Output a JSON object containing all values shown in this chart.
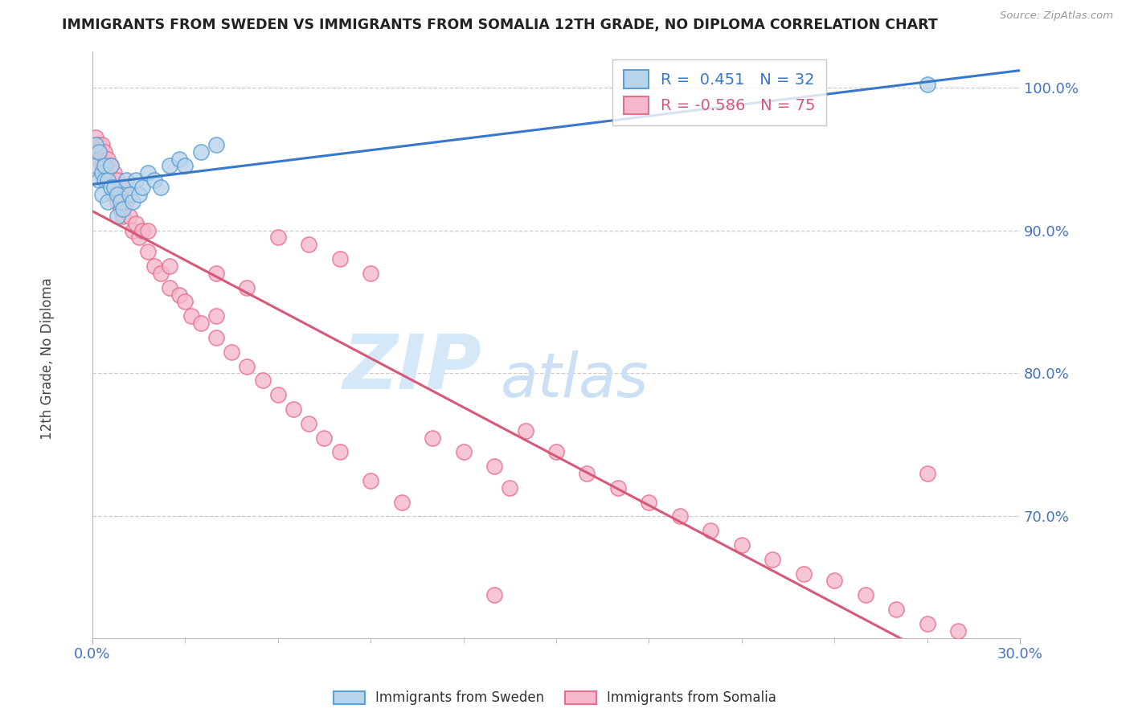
{
  "title": "IMMIGRANTS FROM SWEDEN VS IMMIGRANTS FROM SOMALIA 12TH GRADE, NO DIPLOMA CORRELATION CHART",
  "source_text": "Source: ZipAtlas.com",
  "ylabel": "12th Grade, No Diploma",
  "xlim": [
    0.0,
    0.3
  ],
  "ylim": [
    0.615,
    1.025
  ],
  "ytick_values": [
    0.7,
    0.8,
    0.9,
    1.0
  ],
  "sweden_fill_color": "#b8d4ea",
  "sweden_edge_color": "#5b9fd4",
  "somalia_fill_color": "#f5b8cc",
  "somalia_edge_color": "#e8708a",
  "trend_sweden_color": "#3878c8",
  "trend_somalia_color": "#d85878",
  "sweden_R": 0.451,
  "sweden_N": 32,
  "somalia_R": -0.586,
  "somalia_N": 75,
  "background_color": "#ffffff",
  "grid_color": "#cccccc",
  "axis_label_color": "#4472c4",
  "ylabel_color": "#444444",
  "title_color": "#222222",
  "sweden_x": [
    0.001,
    0.001,
    0.002,
    0.002,
    0.003,
    0.003,
    0.004,
    0.004,
    0.005,
    0.005,
    0.006,
    0.006,
    0.007,
    0.008,
    0.008,
    0.009,
    0.01,
    0.011,
    0.012,
    0.013,
    0.014,
    0.015,
    0.016,
    0.018,
    0.02,
    0.022,
    0.025,
    0.028,
    0.03,
    0.035,
    0.04,
    0.27
  ],
  "sweden_y": [
    0.945,
    0.96,
    0.935,
    0.955,
    0.925,
    0.94,
    0.935,
    0.945,
    0.92,
    0.935,
    0.93,
    0.945,
    0.93,
    0.91,
    0.925,
    0.92,
    0.915,
    0.935,
    0.925,
    0.92,
    0.935,
    0.925,
    0.93,
    0.94,
    0.935,
    0.93,
    0.945,
    0.95,
    0.945,
    0.955,
    0.96,
    1.002
  ],
  "somalia_x": [
    0.001,
    0.001,
    0.002,
    0.002,
    0.003,
    0.003,
    0.004,
    0.004,
    0.005,
    0.005,
    0.006,
    0.006,
    0.007,
    0.007,
    0.008,
    0.008,
    0.009,
    0.009,
    0.01,
    0.01,
    0.011,
    0.012,
    0.013,
    0.014,
    0.015,
    0.016,
    0.018,
    0.018,
    0.02,
    0.022,
    0.025,
    0.025,
    0.028,
    0.03,
    0.032,
    0.035,
    0.04,
    0.04,
    0.045,
    0.05,
    0.055,
    0.06,
    0.065,
    0.07,
    0.075,
    0.08,
    0.09,
    0.1,
    0.11,
    0.12,
    0.13,
    0.135,
    0.14,
    0.15,
    0.16,
    0.17,
    0.18,
    0.19,
    0.2,
    0.21,
    0.22,
    0.23,
    0.24,
    0.25,
    0.26,
    0.27,
    0.28,
    0.04,
    0.05,
    0.06,
    0.07,
    0.08,
    0.09,
    0.27,
    0.13
  ],
  "somalia_y": [
    0.965,
    0.955,
    0.96,
    0.95,
    0.945,
    0.96,
    0.94,
    0.955,
    0.935,
    0.95,
    0.93,
    0.945,
    0.925,
    0.94,
    0.92,
    0.935,
    0.915,
    0.93,
    0.91,
    0.93,
    0.92,
    0.91,
    0.9,
    0.905,
    0.895,
    0.9,
    0.885,
    0.9,
    0.875,
    0.87,
    0.86,
    0.875,
    0.855,
    0.85,
    0.84,
    0.835,
    0.825,
    0.84,
    0.815,
    0.805,
    0.795,
    0.785,
    0.775,
    0.765,
    0.755,
    0.745,
    0.725,
    0.71,
    0.755,
    0.745,
    0.735,
    0.72,
    0.76,
    0.745,
    0.73,
    0.72,
    0.71,
    0.7,
    0.69,
    0.68,
    0.67,
    0.66,
    0.655,
    0.645,
    0.635,
    0.625,
    0.62,
    0.87,
    0.86,
    0.895,
    0.89,
    0.88,
    0.87,
    0.73,
    0.645
  ]
}
